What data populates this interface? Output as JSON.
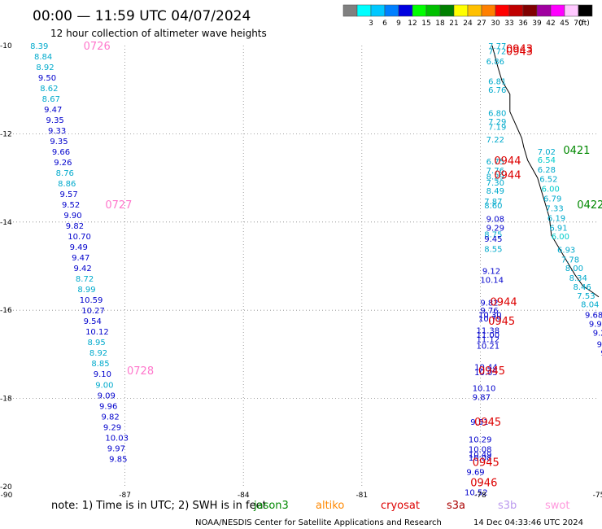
{
  "title": "00:00 — 11:59 UTC 04/07/2024",
  "subtitle": "12 hour collection of altimeter wave heights",
  "legend": {
    "unit": "(ft)",
    "swatches": [
      {
        "label": "",
        "color": "#808080"
      },
      {
        "label": "3",
        "color": "#00ffff"
      },
      {
        "label": "6",
        "color": "#00c8ff"
      },
      {
        "label": "9",
        "color": "#0080ff"
      },
      {
        "label": "12",
        "color": "#0000e0"
      },
      {
        "label": "15",
        "color": "#00ff00"
      },
      {
        "label": "18",
        "color": "#00c000"
      },
      {
        "label": "21",
        "color": "#008000"
      },
      {
        "label": "24",
        "color": "#ffff00"
      },
      {
        "label": "27",
        "color": "#ffc000"
      },
      {
        "label": "30",
        "color": "#ff8000"
      },
      {
        "label": "33",
        "color": "#ff0000"
      },
      {
        "label": "36",
        "color": "#c00000"
      },
      {
        "label": "39",
        "color": "#800000"
      },
      {
        "label": "42",
        "color": "#a000a0"
      },
      {
        "label": "45",
        "color": "#ff00ff"
      },
      {
        "label": "70",
        "color": "#ffc8ff"
      },
      {
        "label": "",
        "color": "#000000"
      }
    ]
  },
  "axes": {
    "lon_ticks": [
      {
        "v": -90,
        "label": "-90"
      },
      {
        "v": -87,
        "label": "-87"
      },
      {
        "v": -84,
        "label": "-84"
      },
      {
        "v": -81,
        "label": "-81"
      },
      {
        "v": -78,
        "label": "-78"
      },
      {
        "v": -75,
        "label": "-75"
      }
    ],
    "lat_ticks": [
      {
        "v": -10,
        "label": "-10"
      },
      {
        "v": -12,
        "label": "-12"
      },
      {
        "v": -14,
        "label": "-14"
      },
      {
        "v": -16,
        "label": "-16"
      },
      {
        "v": -18,
        "label": "-18"
      },
      {
        "v": -20,
        "label": "-20"
      }
    ]
  },
  "tracks": [
    {
      "name": "track-west",
      "color_default": "#0000cc",
      "points": [
        {
          "lon": -89.4,
          "lat": -10.0,
          "v": "8.39",
          "c": "#00aacc"
        },
        {
          "lon": -89.3,
          "lat": -10.24,
          "v": "8.84",
          "c": "#00aacc"
        },
        {
          "lon": -89.25,
          "lat": -10.48,
          "v": "8.92",
          "c": "#00aacc"
        },
        {
          "lon": -89.2,
          "lat": -10.72,
          "v": "9.50",
          "c": "#0000cc"
        },
        {
          "lon": -89.15,
          "lat": -10.96,
          "v": "8.62",
          "c": "#00aacc"
        },
        {
          "lon": -89.1,
          "lat": -11.2,
          "v": "8.67",
          "c": "#00aacc"
        },
        {
          "lon": -89.05,
          "lat": -11.44,
          "v": "9.47",
          "c": "#0000cc"
        },
        {
          "lon": -89.0,
          "lat": -11.68,
          "v": "9.35",
          "c": "#0000cc"
        },
        {
          "lon": -88.95,
          "lat": -11.92,
          "v": "9.33",
          "c": "#0000cc"
        },
        {
          "lon": -88.9,
          "lat": -12.16,
          "v": "9.35",
          "c": "#0000cc"
        },
        {
          "lon": -88.85,
          "lat": -12.4,
          "v": "9.66",
          "c": "#0000cc"
        },
        {
          "lon": -88.8,
          "lat": -12.64,
          "v": "9.26",
          "c": "#0000cc"
        },
        {
          "lon": -88.75,
          "lat": -12.88,
          "v": "8.76",
          "c": "#00aacc"
        },
        {
          "lon": -88.7,
          "lat": -13.12,
          "v": "8.86",
          "c": "#00aacc"
        },
        {
          "lon": -88.65,
          "lat": -13.36,
          "v": "9.57",
          "c": "#0000cc"
        },
        {
          "lon": -88.6,
          "lat": -13.6,
          "v": "9.52",
          "c": "#0000cc"
        },
        {
          "lon": -88.55,
          "lat": -13.84,
          "v": "9.90",
          "c": "#0000cc"
        },
        {
          "lon": -88.5,
          "lat": -14.08,
          "v": "9.82",
          "c": "#0000cc"
        },
        {
          "lon": -88.45,
          "lat": -14.32,
          "v": "10.70",
          "c": "#0000cc"
        },
        {
          "lon": -88.4,
          "lat": -14.56,
          "v": "9.49",
          "c": "#0000cc"
        },
        {
          "lon": -88.35,
          "lat": -14.8,
          "v": "9.47",
          "c": "#0000cc"
        },
        {
          "lon": -88.3,
          "lat": -15.04,
          "v": "9.42",
          "c": "#0000cc"
        },
        {
          "lon": -88.25,
          "lat": -15.28,
          "v": "8.72",
          "c": "#00aacc"
        },
        {
          "lon": -88.2,
          "lat": -15.52,
          "v": "8.99",
          "c": "#00aacc"
        },
        {
          "lon": -88.15,
          "lat": -15.76,
          "v": "10.59",
          "c": "#0000cc"
        },
        {
          "lon": -88.1,
          "lat": -16.0,
          "v": "10.27",
          "c": "#0000cc"
        },
        {
          "lon": -88.05,
          "lat": -16.24,
          "v": "9.54",
          "c": "#0000cc"
        },
        {
          "lon": -88.0,
          "lat": -16.48,
          "v": "10.12",
          "c": "#0000cc"
        },
        {
          "lon": -87.95,
          "lat": -16.72,
          "v": "8.95",
          "c": "#00aacc"
        },
        {
          "lon": -87.9,
          "lat": -16.96,
          "v": "8.92",
          "c": "#00aacc"
        },
        {
          "lon": -87.85,
          "lat": -17.2,
          "v": "8.85",
          "c": "#00aacc"
        },
        {
          "lon": -87.8,
          "lat": -17.44,
          "v": "9.10",
          "c": "#0000cc"
        },
        {
          "lon": -87.75,
          "lat": -17.68,
          "v": "9.00",
          "c": "#00aacc"
        },
        {
          "lon": -87.7,
          "lat": -17.92,
          "v": "9.09",
          "c": "#0000cc"
        },
        {
          "lon": -87.65,
          "lat": -18.16,
          "v": "9.96",
          "c": "#0000cc"
        },
        {
          "lon": -87.6,
          "lat": -18.4,
          "v": "9.82",
          "c": "#0000cc"
        },
        {
          "lon": -87.55,
          "lat": -18.64,
          "v": "9.29",
          "c": "#0000cc"
        },
        {
          "lon": -87.5,
          "lat": -18.88,
          "v": "10.03",
          "c": "#0000cc"
        },
        {
          "lon": -87.45,
          "lat": -19.12,
          "v": "9.97",
          "c": "#0000cc"
        },
        {
          "lon": -87.4,
          "lat": -19.36,
          "v": "9.85",
          "c": "#0000cc"
        }
      ]
    },
    {
      "name": "track-mid",
      "points": [
        {
          "lon": -77.8,
          "lat": -10.0,
          "v": "7.77",
          "c": "#00aacc"
        },
        {
          "lon": -77.8,
          "lat": -10.12,
          "v": "7.72",
          "c": "#00aacc"
        },
        {
          "lon": -77.85,
          "lat": -10.35,
          "v": "6.86",
          "c": "#00aacc"
        },
        {
          "lon": -77.8,
          "lat": -10.8,
          "v": "6.81",
          "c": "#00aacc"
        },
        {
          "lon": -77.8,
          "lat": -11.0,
          "v": "6.76",
          "c": "#00aacc"
        },
        {
          "lon": -77.8,
          "lat": -11.52,
          "v": "6.80",
          "c": "#00aacc"
        },
        {
          "lon": -77.8,
          "lat": -11.72,
          "v": "7.29",
          "c": "#00aacc"
        },
        {
          "lon": -77.8,
          "lat": -11.84,
          "v": "7.19",
          "c": "#00aacc"
        },
        {
          "lon": -77.85,
          "lat": -12.12,
          "v": "7.22",
          "c": "#00aacc"
        },
        {
          "lon": -77.85,
          "lat": -12.62,
          "v": "6.75",
          "c": "#00aacc"
        },
        {
          "lon": -77.85,
          "lat": -12.82,
          "v": "7.76",
          "c": "#00aacc"
        },
        {
          "lon": -77.85,
          "lat": -12.96,
          "v": "8.29",
          "c": "#00aacc"
        },
        {
          "lon": -77.85,
          "lat": -13.1,
          "v": "7.30",
          "c": "#00aacc"
        },
        {
          "lon": -77.85,
          "lat": -13.28,
          "v": "8.49",
          "c": "#00aacc"
        },
        {
          "lon": -77.9,
          "lat": -13.52,
          "v": "7.87",
          "c": "#00aacc"
        },
        {
          "lon": -77.9,
          "lat": -13.62,
          "v": "8.60",
          "c": "#00aacc"
        },
        {
          "lon": -77.85,
          "lat": -13.92,
          "v": "9.08",
          "c": "#0000cc"
        },
        {
          "lon": -77.85,
          "lat": -14.12,
          "v": "9.29",
          "c": "#0000cc"
        },
        {
          "lon": -77.9,
          "lat": -14.27,
          "v": "8.75",
          "c": "#00aacc"
        },
        {
          "lon": -77.9,
          "lat": -14.37,
          "v": "9.45",
          "c": "#0000cc"
        },
        {
          "lon": -77.9,
          "lat": -14.6,
          "v": "8.55",
          "c": "#00aacc"
        },
        {
          "lon": -77.95,
          "lat": -15.1,
          "v": "9.12",
          "c": "#0000cc"
        },
        {
          "lon": -78.0,
          "lat": -15.3,
          "v": "10.14",
          "c": "#0000cc"
        },
        {
          "lon": -78.0,
          "lat": -15.82,
          "v": "9.82",
          "c": "#0000cc"
        },
        {
          "lon": -78.0,
          "lat": -16.0,
          "v": "9.76",
          "c": "#0000cc"
        },
        {
          "lon": -78.05,
          "lat": -16.1,
          "v": "10.30",
          "c": "#0000cc"
        },
        {
          "lon": -78.05,
          "lat": -16.18,
          "v": "10.79",
          "c": "#0000cc"
        },
        {
          "lon": -78.1,
          "lat": -16.45,
          "v": "11.38",
          "c": "#0000cc"
        },
        {
          "lon": -78.1,
          "lat": -16.55,
          "v": "11.00",
          "c": "#0000cc"
        },
        {
          "lon": -78.1,
          "lat": -16.65,
          "v": "11.12",
          "c": "#0000cc"
        },
        {
          "lon": -78.1,
          "lat": -16.8,
          "v": "10.21",
          "c": "#0000cc"
        },
        {
          "lon": -78.15,
          "lat": -17.28,
          "v": "10.44",
          "c": "#0000cc"
        },
        {
          "lon": -78.15,
          "lat": -17.4,
          "v": "10.05",
          "c": "#0000cc"
        },
        {
          "lon": -78.2,
          "lat": -17.76,
          "v": "10.10",
          "c": "#0000cc"
        },
        {
          "lon": -78.2,
          "lat": -17.96,
          "v": "9.87",
          "c": "#0000cc"
        },
        {
          "lon": -78.25,
          "lat": -18.52,
          "v": "9.51",
          "c": "#0000cc"
        },
        {
          "lon": -78.3,
          "lat": -18.92,
          "v": "10.29",
          "c": "#0000cc"
        },
        {
          "lon": -78.3,
          "lat": -19.14,
          "v": "10.08",
          "c": "#0000cc"
        },
        {
          "lon": -78.3,
          "lat": -19.26,
          "v": "10.49",
          "c": "#0000cc"
        },
        {
          "lon": -78.3,
          "lat": -19.34,
          "v": "10.08",
          "c": "#0000cc"
        },
        {
          "lon": -78.35,
          "lat": -19.66,
          "v": "9.69",
          "c": "#0000cc"
        },
        {
          "lon": -78.4,
          "lat": -20.12,
          "v": "10.52",
          "c": "#0000cc"
        }
      ]
    },
    {
      "name": "track-east",
      "points": [
        {
          "lon": -76.55,
          "lat": -12.4,
          "v": "7.02",
          "c": "#00aacc"
        },
        {
          "lon": -76.55,
          "lat": -12.58,
          "v": "6.54",
          "c": "#00cccc"
        },
        {
          "lon": -76.55,
          "lat": -12.8,
          "v": "6.28",
          "c": "#00aacc"
        },
        {
          "lon": -76.5,
          "lat": -13.02,
          "v": "6.52",
          "c": "#00aacc"
        },
        {
          "lon": -76.45,
          "lat": -13.24,
          "v": "6.00",
          "c": "#00cccc"
        },
        {
          "lon": -76.4,
          "lat": -13.46,
          "v": "6.79",
          "c": "#00aacc"
        },
        {
          "lon": -76.35,
          "lat": -13.68,
          "v": "7.33",
          "c": "#00aacc"
        },
        {
          "lon": -76.3,
          "lat": -13.9,
          "v": "6.19",
          "c": "#00aacc"
        },
        {
          "lon": -76.25,
          "lat": -14.12,
          "v": "6.91",
          "c": "#00aacc"
        },
        {
          "lon": -76.2,
          "lat": -14.32,
          "v": "6.00",
          "c": "#00cccc"
        },
        {
          "lon": -76.05,
          "lat": -14.62,
          "v": "6.93",
          "c": "#00aacc"
        },
        {
          "lon": -75.95,
          "lat": -14.84,
          "v": "7.78",
          "c": "#00aacc"
        },
        {
          "lon": -75.85,
          "lat": -15.04,
          "v": "8.00",
          "c": "#00aacc"
        },
        {
          "lon": -75.75,
          "lat": -15.26,
          "v": "8.34",
          "c": "#00aacc"
        },
        {
          "lon": -75.65,
          "lat": -15.46,
          "v": "8.46",
          "c": "#00aacc"
        },
        {
          "lon": -75.55,
          "lat": -15.66,
          "v": "7.53",
          "c": "#00aacc"
        },
        {
          "lon": -75.45,
          "lat": -15.86,
          "v": "8.04",
          "c": "#00aacc"
        },
        {
          "lon": -75.35,
          "lat": -16.1,
          "v": "9.68",
          "c": "#0000cc"
        },
        {
          "lon": -75.25,
          "lat": -16.3,
          "v": "9.96",
          "c": "#0000cc"
        },
        {
          "lon": -75.15,
          "lat": -16.5,
          "v": "9.22",
          "c": "#0000cc"
        },
        {
          "lon": -75.05,
          "lat": -16.76,
          "v": "9.89",
          "c": "#0000cc"
        },
        {
          "lon": -74.95,
          "lat": -16.96,
          "v": "9.83",
          "c": "#0000cc"
        },
        {
          "lon": -74.9,
          "lat": -17.14,
          "v": "9.1",
          "c": "#0000cc"
        },
        {
          "lon": -74.85,
          "lat": -17.34,
          "v": "9.",
          "c": "#0000cc"
        },
        {
          "lon": -74.8,
          "lat": -17.54,
          "v": "8",
          "c": "#00aacc"
        }
      ]
    }
  ],
  "time_labels": [
    {
      "lon": -88.05,
      "lat": -10.0,
      "text": "0726",
      "color": "#ff77cc"
    },
    {
      "lon": -87.5,
      "lat": -13.6,
      "text": "0727",
      "color": "#ff77cc"
    },
    {
      "lon": -86.95,
      "lat": -17.36,
      "text": "0728",
      "color": "#ff77cc"
    },
    {
      "lon": -77.35,
      "lat": -10.06,
      "text": "0943",
      "color": "#dd0000"
    },
    {
      "lon": -77.35,
      "lat": -10.12,
      "text": "0943",
      "color": "#dd0000"
    },
    {
      "lon": -77.65,
      "lat": -12.6,
      "text": "0944",
      "color": "#dd0000"
    },
    {
      "lon": -77.65,
      "lat": -12.92,
      "text": "0944",
      "color": "#dd0000"
    },
    {
      "lon": -77.75,
      "lat": -15.8,
      "text": "0944",
      "color": "#dd0000"
    },
    {
      "lon": -77.8,
      "lat": -16.24,
      "text": "0945",
      "color": "#dd0000"
    },
    {
      "lon": -78.05,
      "lat": -17.36,
      "text": "0945",
      "color": "#dd0000"
    },
    {
      "lon": -78.15,
      "lat": -18.52,
      "text": "0945",
      "color": "#dd0000"
    },
    {
      "lon": -78.2,
      "lat": -19.44,
      "text": "0945",
      "color": "#dd0000"
    },
    {
      "lon": -78.25,
      "lat": -19.9,
      "text": "0946",
      "color": "#dd0000"
    },
    {
      "lon": -75.9,
      "lat": -12.36,
      "text": "0421",
      "color": "#008800"
    },
    {
      "lon": -75.55,
      "lat": -13.6,
      "text": "0422",
      "color": "#008800"
    }
  ],
  "coast": [
    [
      -77.7,
      -10.0
    ],
    [
      -77.55,
      -10.5
    ],
    [
      -77.45,
      -10.8
    ],
    [
      -77.25,
      -11.1
    ],
    [
      -77.25,
      -11.5
    ],
    [
      -77.15,
      -11.7
    ],
    [
      -76.95,
      -12.1
    ],
    [
      -76.9,
      -12.3
    ],
    [
      -76.8,
      -12.6
    ],
    [
      -76.55,
      -13.0
    ],
    [
      -76.45,
      -13.3
    ],
    [
      -76.35,
      -13.6
    ],
    [
      -76.25,
      -13.9
    ],
    [
      -76.2,
      -14.3
    ],
    [
      -76.0,
      -14.6
    ],
    [
      -75.8,
      -14.9
    ],
    [
      -75.6,
      -15.2
    ],
    [
      -75.4,
      -15.45
    ],
    [
      -75.15,
      -15.6
    ],
    [
      -75.0,
      -15.7
    ]
  ],
  "islands": [
    [
      -73.2,
      -11.1
    ]
  ],
  "note": "note:  1) Time is in UTC; 2) SWH is in feet",
  "satellites": [
    {
      "name": "jason3",
      "color": "#008800"
    },
    {
      "name": "altiko",
      "color": "#ff8800"
    },
    {
      "name": "cryosat",
      "color": "#dd0000"
    },
    {
      "name": "s3a",
      "color": "#aa0000"
    },
    {
      "name": "s3b",
      "color": "#bb99ee"
    },
    {
      "name": "swot",
      "color": "#ff99dd"
    }
  ],
  "credit": "NOAA/NESDIS Center for Satellite Applications and Research",
  "generated": "14 Dec 04:33:46 UTC 2024"
}
